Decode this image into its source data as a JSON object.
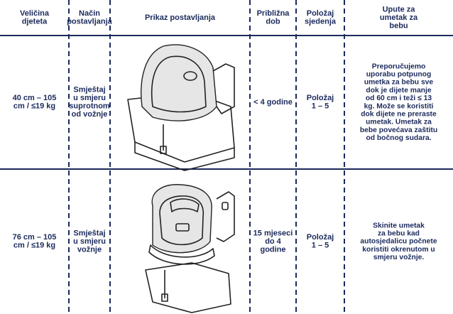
{
  "table": {
    "headers": [
      [
        "Veličina",
        "djeteta"
      ],
      [
        "Način",
        "postavljanja"
      ],
      [
        "Prikaz postavljanja"
      ],
      [
        "Približna",
        "dob"
      ],
      [
        "Položaj",
        "sjedenja"
      ],
      [
        "Upute za",
        "umetak za",
        "bebu"
      ]
    ],
    "rows": [
      [
        [
          "40 cm – 105",
          "cm / ≤19 kg"
        ],
        [
          "Smještaj",
          "u smjeru",
          "suprotnom",
          "od vožnje"
        ],
        [],
        [
          "< 4 godine"
        ],
        [
          "Položaj",
          "1 – 5"
        ],
        [
          "Preporučujemo",
          "uporabu potpunog",
          "umetka za bebu sve",
          "dok je dijete manje",
          "od 60 cm i teži ≤ 13",
          "kg. Može se koristiti",
          "dok dijete ne preraste",
          "umetak. Umetak za",
          "bebe povećava zaštitu",
          "od bočnog sudara."
        ]
      ],
      [
        [
          "76 cm – 105",
          "cm / ≤19 kg"
        ],
        [
          "Smještaj",
          "u smjeru",
          "vožnje"
        ],
        [],
        [
          "15 mjeseci",
          "do 4",
          "godine"
        ],
        [
          "Položaj",
          "1 – 5"
        ],
        [
          "Skinite umetak",
          "za bebu kad",
          "autosjedalicu počnete",
          "koristiti okrenutom u",
          "smjeru vožnje."
        ]
      ]
    ]
  }
}
